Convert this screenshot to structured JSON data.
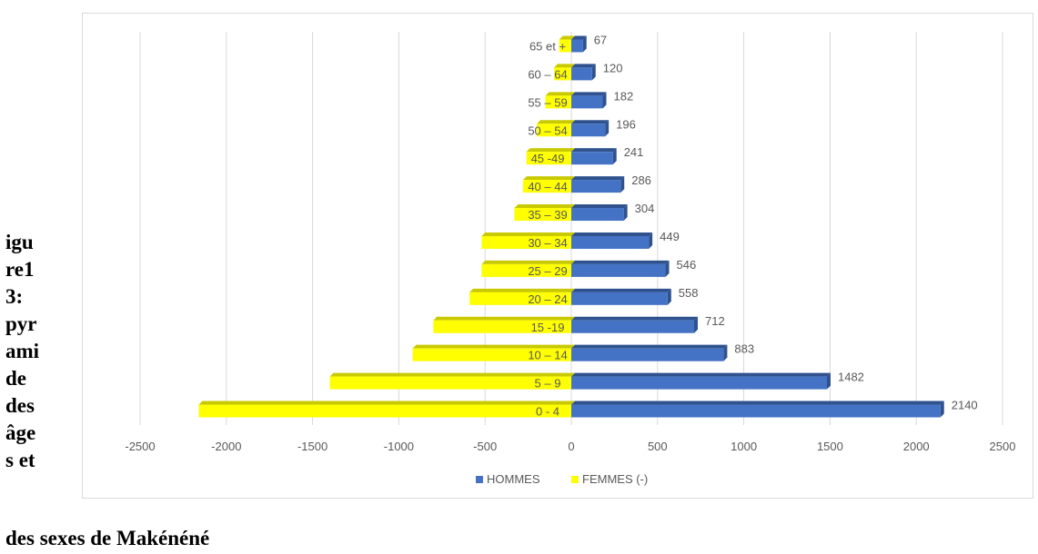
{
  "caption": {
    "left_text": "igu\nre1\n3:\npyr\nami\nde\ndes\nâge\ns et",
    "bottom_text": "des sexes de Makénéné"
  },
  "colors": {
    "hommes": "#4472c4",
    "hommes_dark": "#2f528f",
    "femmes": "#ffff00",
    "femmes_dark": "#c9c900",
    "grid": "#d9d9d9",
    "text": "#595959"
  },
  "chart_data": {
    "type": "bar",
    "orientation": "horizontal",
    "categories": [
      "0 - 4",
      "5 – 9",
      "10 – 14",
      "15 -19",
      "20 – 24",
      "25 – 29",
      "30 – 34",
      "35 – 39",
      "40 – 44",
      "45 -49",
      "50 – 54",
      "55 – 59",
      "60 – 64",
      "65 et +"
    ],
    "series": [
      {
        "name": "HOMMES",
        "values": [
          2140,
          1482,
          883,
          712,
          558,
          546,
          449,
          304,
          286,
          241,
          196,
          182,
          120,
          67
        ]
      },
      {
        "name": "FEMMES (-)",
        "values": [
          -2160,
          -1400,
          -920,
          -800,
          -590,
          -520,
          -520,
          -330,
          -280,
          -260,
          -200,
          -150,
          -100,
          -70
        ]
      }
    ],
    "data_labels": [
      "2140",
      "1482",
      "883",
      "712",
      "558",
      "546",
      "449",
      "304",
      "286",
      "241",
      "196",
      "182",
      "120",
      "67"
    ],
    "xlim": [
      -2500,
      2500
    ],
    "ticks": [
      "-2500",
      "-2000",
      "-1500",
      "-1000",
      "-500",
      "0",
      "500",
      "1000",
      "1500",
      "2000",
      "2500"
    ],
    "tick_values": [
      -2500,
      -2000,
      -1500,
      -1000,
      -500,
      0,
      500,
      1000,
      1500,
      2000,
      2500
    ],
    "grid": true,
    "legend_position": "bottom"
  }
}
